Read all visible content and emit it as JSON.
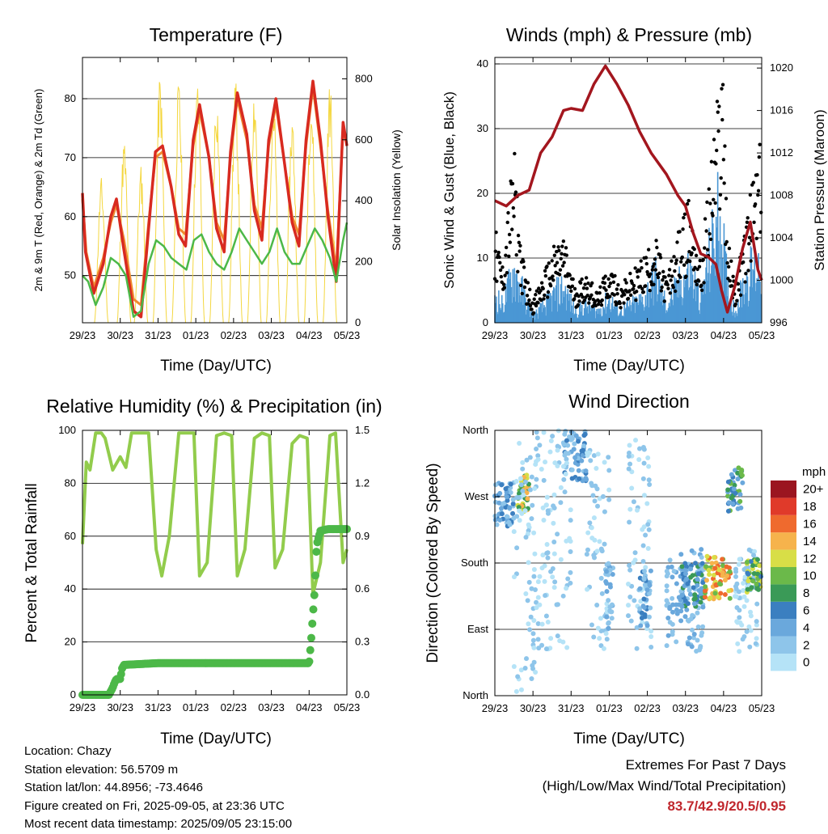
{
  "colors": {
    "temp_red": "#d82a20",
    "temp_orange": "#f08a30",
    "dewpoint_green": "#4cb848",
    "solar_yellow": "#f4d740",
    "gust_black": "#000000",
    "wind_blue": "#4a97d4",
    "pressure_maroon": "#a3161e",
    "rh_green": "#92cc4c",
    "precip_green": "#4cb848",
    "extremes_red": "#c0272d",
    "speed_scale": [
      "#b5e3f7",
      "#8ec5ea",
      "#6aa8dc",
      "#3b7fc0",
      "#3a9a57",
      "#6bb94a",
      "#d8de47",
      "#f6b34c",
      "#ef6a2e",
      "#e03a2a",
      "#c8202a",
      "#9b1520"
    ]
  },
  "x_tick_labels": [
    "29/23",
    "30/23",
    "31/23",
    "01/23",
    "02/23",
    "03/23",
    "04/23",
    "05/23"
  ],
  "panels": {
    "temperature": {
      "title": "Temperature (F)",
      "xlabel": "Time (Day/UTC)",
      "ylabel_left": "2m & 9m T (Red, Orange) & 2m Td (Green)",
      "ylabel_right": "Solar Insolation (Yellow)",
      "yticks_left": [
        "50",
        "60",
        "70",
        "80"
      ],
      "yticks_right": [
        "0",
        "200",
        "400",
        "600",
        "800"
      ]
    },
    "winds": {
      "title": "Winds (mph) & Pressure (mb)",
      "xlabel": "Time (Day/UTC)",
      "ylabel_left": "Sonic Wind & Gust (Blue, Black)",
      "ylabel_right": "Station Pressure (Maroon)",
      "yticks_left": [
        "0",
        "10",
        "20",
        "30",
        "40"
      ],
      "yticks_right": [
        "996",
        "1000",
        "1004",
        "1008",
        "1012",
        "1016",
        "1020"
      ]
    },
    "humidity": {
      "title": "Relative Humidity (%) & Precipitation (in)",
      "xlabel": "Time (Day/UTC)",
      "ylabel_left": "Percent & Total Rainfall",
      "yticks_left": [
        "0",
        "20",
        "40",
        "60",
        "80",
        "100"
      ],
      "yticks_right": [
        "0.0",
        "0.3",
        "0.6",
        "0.9",
        "1.2",
        "1.5"
      ]
    },
    "direction": {
      "title": "Wind Direction",
      "xlabel": "Time (Day/UTC)",
      "ylabel_left": "Direction (Colored By Speed)",
      "yticks_left": [
        "North",
        "East",
        "South",
        "West",
        "North"
      ],
      "legend_title": "mph",
      "legend_labels": [
        "0",
        "2",
        "4",
        "6",
        "8",
        "10",
        "12",
        "14",
        "16",
        "18",
        "20+"
      ]
    }
  },
  "info": {
    "location": "Location: Chazy",
    "elevation": "Station elevation: 56.5709 m",
    "latlon": "Station lat/lon: 44.8956; -73.4646",
    "created": "Figure created on Fri, 2025-09-05, at 23:36 UTC",
    "timestamp": "Most recent data timestamp: 2025/09/05 23:15:00"
  },
  "extremes": {
    "line1": "Extremes For Past 7 Days",
    "line2": "(High/Low/Max Wind/Total Precipitation)",
    "values": "83.7/42.9/20.5/0.95"
  },
  "chart_data": [
    {
      "type": "line",
      "title": "Temperature (F)",
      "xlabel": "Time (Day/UTC)",
      "x_range_days": [
        0,
        7
      ],
      "ylim_left": [
        42,
        87
      ],
      "ylim_right": [
        0,
        870
      ],
      "series": [
        {
          "name": "2m T",
          "axis": "left",
          "x": [
            0,
            0.08,
            0.3,
            0.55,
            0.75,
            0.9,
            1.08,
            1.35,
            1.55,
            1.75,
            1.93,
            2.12,
            2.35,
            2.55,
            2.73,
            2.93,
            3.1,
            3.35,
            3.55,
            3.75,
            3.92,
            4.1,
            4.35,
            4.55,
            4.75,
            4.93,
            5.12,
            5.35,
            5.55,
            5.73,
            5.92,
            6.1,
            6.3,
            6.5,
            6.72,
            6.9,
            7.0
          ],
          "y": [
            64,
            54,
            47,
            52,
            60,
            63,
            55,
            44,
            43,
            58,
            71,
            72,
            65,
            57,
            55,
            73,
            79,
            70,
            58,
            54,
            71,
            81,
            74,
            61,
            56,
            73,
            80,
            69,
            59,
            55,
            73,
            83,
            73,
            60,
            49,
            76,
            72
          ]
        },
        {
          "name": "9m T",
          "axis": "left",
          "x": [
            0,
            0.1,
            0.3,
            0.55,
            0.75,
            0.9,
            1.1,
            1.35,
            1.55,
            1.75,
            1.93,
            2.12,
            2.35,
            2.55,
            2.73,
            2.93,
            3.1,
            3.35,
            3.55,
            3.75,
            3.92,
            4.1,
            4.35,
            4.55,
            4.75,
            4.93,
            5.12,
            5.35,
            5.55,
            5.73,
            5.92,
            6.1,
            6.3,
            6.5,
            6.72,
            6.9,
            7.0
          ],
          "y": [
            63,
            54,
            48,
            53,
            59,
            62,
            56,
            46,
            45,
            59,
            70,
            71,
            65,
            58,
            57,
            72,
            78,
            70,
            59,
            56,
            70,
            80,
            73,
            62,
            58,
            72,
            79,
            69,
            60,
            57,
            72,
            82,
            72,
            61,
            51,
            75,
            72
          ]
        },
        {
          "name": "2m Td",
          "axis": "left",
          "x": [
            0,
            0.15,
            0.35,
            0.55,
            0.75,
            0.95,
            1.15,
            1.35,
            1.55,
            1.75,
            1.95,
            2.15,
            2.35,
            2.55,
            2.75,
            2.95,
            3.15,
            3.35,
            3.55,
            3.75,
            3.95,
            4.15,
            4.35,
            4.55,
            4.75,
            4.95,
            5.15,
            5.35,
            5.55,
            5.75,
            5.95,
            6.15,
            6.35,
            6.55,
            6.72,
            6.9,
            7.0
          ],
          "y": [
            50,
            49,
            45,
            48,
            53,
            52,
            50,
            43,
            44,
            52,
            56,
            55,
            53,
            52,
            51,
            56,
            57,
            54,
            52,
            51,
            54,
            58,
            56,
            54,
            52,
            54,
            58,
            54,
            52,
            52,
            55,
            58,
            56,
            53,
            49,
            56,
            59
          ]
        },
        {
          "name": "Solar Insolation",
          "axis": "right",
          "x": [
            0.5,
            1.1,
            1.55,
            2.05,
            2.55,
            3.05,
            3.55,
            4.05,
            4.55,
            5.05,
            5.55,
            6.05,
            6.55
          ],
          "y": [
            480,
            610,
            520,
            830,
            800,
            810,
            780,
            800,
            800,
            780,
            700,
            780,
            800
          ]
        }
      ]
    },
    {
      "type": "line",
      "title": "Winds (mph) & Pressure (mb)",
      "xlabel": "Time (Day/UTC)",
      "x_range_days": [
        0,
        7
      ],
      "ylim_left": [
        0,
        41
      ],
      "ylim_right": [
        996,
        1021
      ],
      "series": [
        {
          "name": "Station Pressure",
          "axis": "right",
          "x": [
            0,
            0.3,
            0.6,
            0.9,
            1.2,
            1.5,
            1.8,
            2.0,
            2.3,
            2.6,
            2.9,
            3.2,
            3.5,
            3.8,
            4.1,
            4.5,
            4.8,
            5.0,
            5.2,
            5.4,
            5.6,
            5.8,
            5.95,
            6.1,
            6.3,
            6.5,
            6.7,
            6.9,
            7.0
          ],
          "y": [
            1007.5,
            1007,
            1008,
            1008.5,
            1012,
            1013.5,
            1016,
            1016.2,
            1016,
            1018.5,
            1020.2,
            1018.5,
            1016.5,
            1014,
            1012,
            1010,
            1008,
            1007,
            1004.5,
            1002.5,
            1002.2,
            1001.5,
            999,
            997,
            999.5,
            1003,
            1005.5,
            1001,
            1000
          ]
        },
        {
          "name": "Sonic Wind",
          "axis": "left",
          "x": [
            0,
            0.2,
            0.5,
            0.8,
            1.0,
            1.3,
            1.6,
            1.8,
            2.1,
            2.4,
            2.7,
            3.0,
            3.3,
            3.6,
            3.9,
            4.2,
            4.5,
            4.8,
            5.1,
            5.4,
            5.7,
            5.9,
            6.1,
            6.3,
            6.6,
            6.9
          ],
          "y": [
            5,
            3,
            9,
            4,
            1,
            3,
            5,
            6,
            2,
            3,
            2,
            4,
            2,
            3,
            4,
            8,
            3,
            6,
            9,
            4,
            13,
            19,
            6,
            2,
            8,
            10
          ]
        },
        {
          "name": "Gust",
          "axis": "left",
          "x": [
            0,
            0.2,
            0.5,
            0.7,
            0.8,
            1.0,
            1.3,
            1.6,
            1.8,
            2.1,
            2.4,
            2.7,
            3.0,
            3.3,
            3.6,
            3.9,
            4.2,
            4.5,
            4.8,
            5.1,
            5.4,
            5.7,
            5.9,
            6.0,
            6.1,
            6.3,
            6.6,
            6.9
          ],
          "y": [
            13,
            8,
            24,
            10,
            7,
            3,
            7,
            11,
            12,
            5,
            7,
            4,
            8,
            5,
            7,
            9,
            12,
            6,
            12,
            17,
            8,
            24,
            34,
            39,
            12,
            5,
            14,
            24
          ]
        }
      ]
    },
    {
      "type": "line",
      "title": "Relative Humidity (%) & Precipitation (in)",
      "xlabel": "Time (Day/UTC)",
      "x_range_days": [
        0,
        7
      ],
      "ylim_left": [
        0,
        100
      ],
      "ylim_right": [
        0,
        1.5
      ],
      "series": [
        {
          "name": "Relative Humidity",
          "axis": "left",
          "x": [
            0,
            0.1,
            0.2,
            0.35,
            0.5,
            0.6,
            0.8,
            1.0,
            1.15,
            1.3,
            1.5,
            1.75,
            1.95,
            2.1,
            2.3,
            2.55,
            2.75,
            2.95,
            3.1,
            3.3,
            3.55,
            3.75,
            3.95,
            4.1,
            4.3,
            4.55,
            4.75,
            4.95,
            5.1,
            5.3,
            5.55,
            5.75,
            5.95,
            6.1,
            6.3,
            6.55,
            6.7,
            6.9,
            7.0
          ],
          "y": [
            57,
            88,
            85,
            99,
            99,
            97,
            85,
            90,
            86,
            99,
            99,
            99,
            55,
            45,
            60,
            99,
            99,
            99,
            45,
            50,
            98,
            99,
            98,
            45,
            55,
            97,
            99,
            98,
            48,
            55,
            95,
            98,
            97,
            38,
            50,
            98,
            99,
            50,
            55
          ]
        },
        {
          "name": "Total Precipitation",
          "axis": "right",
          "x": [
            0,
            0.7,
            0.8,
            0.85,
            0.9,
            1.0,
            1.05,
            1.1,
            2.0,
            4.0,
            5.0,
            6.0,
            6.05,
            6.1,
            6.15,
            6.2,
            6.3,
            6.5,
            7.0
          ],
          "y": [
            0.0,
            0.0,
            0.04,
            0.07,
            0.09,
            0.09,
            0.15,
            0.17,
            0.18,
            0.18,
            0.18,
            0.18,
            0.3,
            0.45,
            0.6,
            0.85,
            0.93,
            0.94,
            0.94
          ]
        }
      ]
    },
    {
      "type": "scatter",
      "title": "Wind Direction",
      "xlabel": "Time (Day/UTC)",
      "ylabel": "Direction (Colored By Speed)",
      "x_range_days": [
        0,
        7
      ],
      "y_categories": [
        "North",
        "East",
        "South",
        "West",
        "North"
      ],
      "clusters": [
        {
          "x": [
            0.0,
            0.5
          ],
          "dir": [
            230,
            290
          ],
          "speed": [
            2,
            8
          ]
        },
        {
          "x": [
            0.6,
            0.9
          ],
          "dir": [
            250,
            300
          ],
          "speed": [
            8,
            16
          ]
        },
        {
          "x": [
            0.5,
            1.1
          ],
          "dir": [
            0,
            360
          ],
          "speed": [
            0,
            4
          ]
        },
        {
          "x": [
            1.8,
            2.4
          ],
          "dir": [
            290,
            360
          ],
          "speed": [
            2,
            8
          ]
        },
        {
          "x": [
            1.0,
            2.0
          ],
          "dir": [
            60,
            360
          ],
          "speed": [
            0,
            4
          ]
        },
        {
          "x": [
            2.4,
            3.0
          ],
          "dir": [
            60,
            340
          ],
          "speed": [
            0,
            4
          ]
        },
        {
          "x": [
            2.9,
            3.1
          ],
          "dir": [
            90,
            180
          ],
          "speed": [
            2,
            6
          ]
        },
        {
          "x": [
            3.5,
            4.1
          ],
          "dir": [
            60,
            360
          ],
          "speed": [
            0,
            4
          ]
        },
        {
          "x": [
            3.8,
            4.1
          ],
          "dir": [
            90,
            170
          ],
          "speed": [
            2,
            8
          ]
        },
        {
          "x": [
            4.5,
            5.5
          ],
          "dir": [
            60,
            200
          ],
          "speed": [
            2,
            6
          ]
        },
        {
          "x": [
            4.9,
            5.5
          ],
          "dir": [
            120,
            180
          ],
          "speed": [
            4,
            10
          ]
        },
        {
          "x": [
            5.5,
            6.2
          ],
          "dir": [
            130,
            190
          ],
          "speed": [
            10,
            18
          ]
        },
        {
          "x": [
            6.1,
            6.5
          ],
          "dir": [
            250,
            310
          ],
          "speed": [
            4,
            12
          ]
        },
        {
          "x": [
            6.3,
            6.9
          ],
          "dir": [
            60,
            200
          ],
          "speed": [
            0,
            4
          ]
        },
        {
          "x": [
            6.6,
            7.0
          ],
          "dir": [
            140,
            185
          ],
          "speed": [
            6,
            14
          ]
        }
      ]
    }
  ]
}
